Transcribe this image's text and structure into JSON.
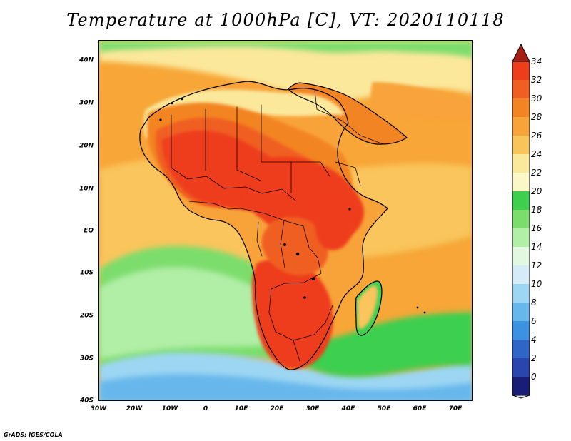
{
  "title": "Temperature at 1000hPa [C], VT: 2020110118",
  "map": {
    "region": "Africa",
    "variable": "Temperature at 1000hPa",
    "units": "C",
    "valid_time": "2020110118",
    "lon_range": [
      -30,
      75
    ],
    "lat_range": [
      -40,
      45
    ]
  },
  "axes": {
    "y_labels": [
      {
        "label": "40N",
        "lat": 40
      },
      {
        "label": "30N",
        "lat": 30
      },
      {
        "label": "20N",
        "lat": 20
      },
      {
        "label": "10N",
        "lat": 10
      },
      {
        "label": "EQ",
        "lat": 0
      },
      {
        "label": "10S",
        "lat": -10
      },
      {
        "label": "20S",
        "lat": -20
      },
      {
        "label": "30S",
        "lat": -30
      },
      {
        "label": "40S",
        "lat": -40
      }
    ],
    "x_labels": [
      {
        "label": "30W",
        "lon": -30
      },
      {
        "label": "20W",
        "lon": -20
      },
      {
        "label": "10W",
        "lon": -10
      },
      {
        "label": "0",
        "lon": 0
      },
      {
        "label": "10E",
        "lon": 10
      },
      {
        "label": "20E",
        "lon": 20
      },
      {
        "label": "30E",
        "lon": 30
      },
      {
        "label": "40E",
        "lon": 40
      },
      {
        "label": "50E",
        "lon": 50
      },
      {
        "label": "60E",
        "lon": 60
      },
      {
        "label": "70E",
        "lon": 70
      }
    ]
  },
  "legend": {
    "labels": [
      "34",
      "32",
      "30",
      "28",
      "26",
      "24",
      "22",
      "20",
      "18",
      "16",
      "14",
      "12",
      "10",
      "8",
      "6",
      "4",
      "2",
      "0"
    ],
    "bins": [
      {
        "color": "#ee3d1b"
      },
      {
        "color": "#f05e21"
      },
      {
        "color": "#f38424"
      },
      {
        "color": "#f8a33a"
      },
      {
        "color": "#f9c55b"
      },
      {
        "color": "#fbe99b"
      },
      {
        "color": "#faf8c6"
      },
      {
        "color": "#3ecf4f"
      },
      {
        "color": "#7bdd6c"
      },
      {
        "color": "#b1eea6"
      },
      {
        "color": "#e2f8e0"
      },
      {
        "color": "#d5ecf8"
      },
      {
        "color": "#9dd6f3"
      },
      {
        "color": "#67b7ec"
      },
      {
        "color": "#3b91e2"
      },
      {
        "color": "#2f65c7"
      },
      {
        "color": "#2a45ad"
      },
      {
        "color": "#1a1d76"
      }
    ],
    "top_arrow_color": "#a71f12",
    "bottom_arrow_color": "#e6e6ff"
  },
  "footer": "GrADS: IGES/COLA"
}
